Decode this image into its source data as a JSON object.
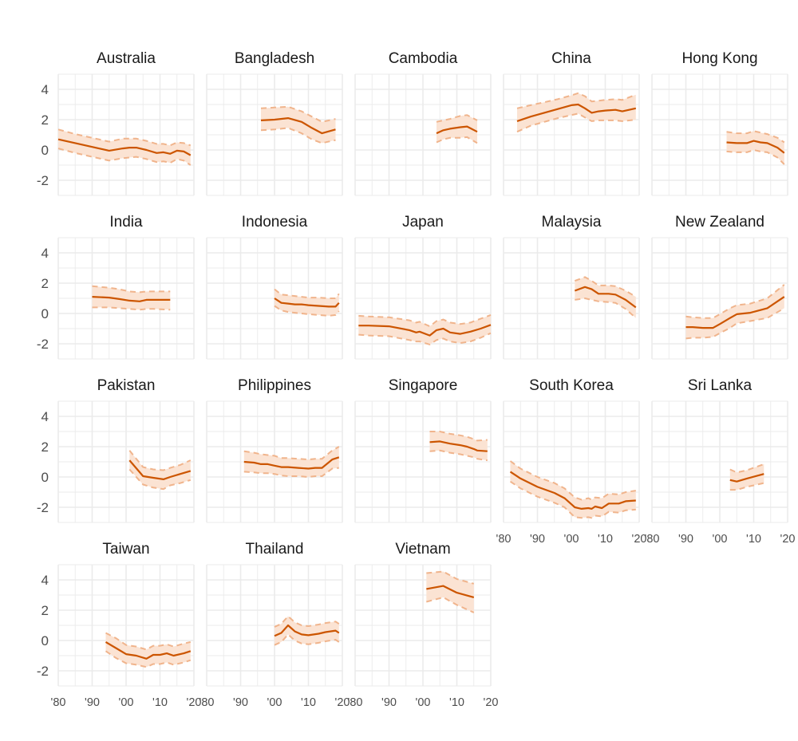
{
  "chart_data": {
    "type": "line",
    "layout": "faceted small multiples, 5 columns",
    "x_ticks": [
      "'80",
      "'90",
      "'00",
      "'10",
      "'20"
    ],
    "x_tick_values": [
      1980,
      1990,
      2000,
      2010,
      2020
    ],
    "xlim": [
      1980,
      2020
    ],
    "y_ticks": [
      "4",
      "2",
      "0",
      "-2"
    ],
    "y_tick_values": [
      4,
      2,
      0,
      -2
    ],
    "ylim": [
      -3,
      5
    ],
    "grid": true,
    "colors": {
      "line": "#cc5500",
      "band": "#fbe3d3",
      "bound": "#f0b48c",
      "grid": "#ebebeb"
    },
    "panels": [
      {
        "name": "Australia",
        "x": [
          1980,
          1985,
          1990,
          1995,
          1999,
          2001,
          2003,
          2006,
          2009,
          2011,
          2013,
          2015,
          2017,
          2019
        ],
        "y": [
          0.7,
          0.45,
          0.2,
          -0.05,
          0.1,
          0.15,
          0.15,
          0.0,
          -0.2,
          -0.15,
          -0.25,
          -0.05,
          -0.1,
          -0.35
        ],
        "lower": [
          0.1,
          -0.2,
          -0.45,
          -0.7,
          -0.55,
          -0.5,
          -0.45,
          -0.6,
          -0.8,
          -0.75,
          -0.85,
          -0.6,
          -0.7,
          -1.0
        ],
        "upper": [
          1.35,
          1.05,
          0.8,
          0.55,
          0.75,
          0.75,
          0.75,
          0.6,
          0.4,
          0.4,
          0.3,
          0.5,
          0.45,
          0.3
        ]
      },
      {
        "name": "Bangladesh",
        "x": [
          1996,
          2000,
          2004,
          2008,
          2011,
          2014,
          2018
        ],
        "y": [
          1.95,
          2.0,
          2.1,
          1.85,
          1.45,
          1.1,
          1.35
        ],
        "lower": [
          1.3,
          1.35,
          1.45,
          1.1,
          0.7,
          0.45,
          0.65
        ],
        "upper": [
          2.75,
          2.8,
          2.85,
          2.55,
          2.2,
          1.85,
          2.05
        ]
      },
      {
        "name": "Cambodia",
        "x": [
          2004,
          2006,
          2008,
          2011,
          2013,
          2016
        ],
        "y": [
          1.1,
          1.3,
          1.4,
          1.5,
          1.55,
          1.2
        ],
        "lower": [
          0.5,
          0.7,
          0.8,
          0.8,
          0.85,
          0.45
        ],
        "upper": [
          1.85,
          1.95,
          2.05,
          2.25,
          2.3,
          1.95
        ]
      },
      {
        "name": "China",
        "x": [
          1984,
          1988,
          1992,
          1996,
          2000,
          2002,
          2004,
          2006,
          2008,
          2010,
          2013,
          2015,
          2019
        ],
        "y": [
          1.9,
          2.2,
          2.45,
          2.7,
          2.95,
          3.0,
          2.75,
          2.45,
          2.55,
          2.6,
          2.65,
          2.55,
          2.75
        ],
        "lower": [
          1.2,
          1.6,
          1.85,
          2.1,
          2.3,
          2.4,
          2.15,
          1.9,
          1.95,
          1.95,
          1.95,
          1.9,
          2.0
        ],
        "upper": [
          2.75,
          2.95,
          3.15,
          3.35,
          3.6,
          3.75,
          3.55,
          3.2,
          3.25,
          3.3,
          3.35,
          3.3,
          3.65
        ]
      },
      {
        "name": "Hong Kong",
        "x": [
          2002,
          2005,
          2008,
          2010,
          2012,
          2014,
          2017,
          2019
        ],
        "y": [
          0.5,
          0.45,
          0.45,
          0.6,
          0.5,
          0.45,
          0.15,
          -0.2
        ],
        "lower": [
          -0.1,
          -0.15,
          -0.15,
          0.0,
          -0.1,
          -0.15,
          -0.5,
          -0.95
        ],
        "upper": [
          1.2,
          1.1,
          1.1,
          1.25,
          1.15,
          1.05,
          0.8,
          0.5
        ]
      },
      {
        "name": "India",
        "x": [
          1990,
          1995,
          1998,
          2001,
          2004,
          2006,
          2008,
          2013
        ],
        "y": [
          1.1,
          1.05,
          0.95,
          0.85,
          0.8,
          0.9,
          0.9,
          0.9
        ],
        "lower": [
          0.4,
          0.4,
          0.35,
          0.3,
          0.25,
          0.3,
          0.3,
          0.25
        ],
        "upper": [
          1.8,
          1.7,
          1.6,
          1.45,
          1.4,
          1.45,
          1.45,
          1.45
        ]
      },
      {
        "name": "Indonesia",
        "x": [
          2000,
          2002,
          2004,
          2006,
          2008,
          2010,
          2013,
          2016,
          2018,
          2019
        ],
        "y": [
          1.0,
          0.7,
          0.65,
          0.6,
          0.6,
          0.55,
          0.5,
          0.45,
          0.45,
          0.7
        ],
        "lower": [
          0.5,
          0.2,
          0.1,
          0.05,
          0.0,
          -0.05,
          -0.1,
          -0.15,
          -0.1,
          0.15
        ],
        "upper": [
          1.6,
          1.25,
          1.2,
          1.15,
          1.1,
          1.05,
          1.05,
          1.0,
          1.0,
          1.3
        ]
      },
      {
        "name": "Japan",
        "x": [
          1981,
          1984,
          1990,
          1996,
          1998,
          1999,
          2002,
          2004,
          2006,
          2008,
          2011,
          2014,
          2017,
          2020
        ],
        "y": [
          -0.8,
          -0.8,
          -0.85,
          -1.1,
          -1.25,
          -1.2,
          -1.45,
          -1.1,
          -1.0,
          -1.25,
          -1.35,
          -1.2,
          -1.0,
          -0.75
        ],
        "lower": [
          -1.4,
          -1.45,
          -1.5,
          -1.75,
          -1.85,
          -1.85,
          -2.05,
          -1.75,
          -1.65,
          -1.85,
          -1.95,
          -1.85,
          -1.6,
          -1.3
        ],
        "upper": [
          -0.15,
          -0.2,
          -0.25,
          -0.45,
          -0.6,
          -0.55,
          -0.85,
          -0.5,
          -0.4,
          -0.6,
          -0.7,
          -0.6,
          -0.35,
          -0.1
        ]
      },
      {
        "name": "Malaysia",
        "x": [
          2001,
          2004,
          2006,
          2008,
          2011,
          2013,
          2016,
          2019
        ],
        "y": [
          1.5,
          1.75,
          1.6,
          1.3,
          1.3,
          1.25,
          0.9,
          0.4
        ],
        "lower": [
          0.9,
          1.0,
          0.9,
          0.8,
          0.75,
          0.7,
          0.3,
          -0.3
        ],
        "upper": [
          2.15,
          2.4,
          2.15,
          1.85,
          1.85,
          1.8,
          1.5,
          1.1
        ]
      },
      {
        "name": "New Zealand",
        "x": [
          1990,
          1992,
          1995,
          1998,
          2000,
          2003,
          2005,
          2009,
          2014,
          2019
        ],
        "y": [
          -0.9,
          -0.9,
          -0.95,
          -0.95,
          -0.7,
          -0.3,
          -0.05,
          0.05,
          0.35,
          1.1
        ],
        "lower": [
          -1.65,
          -1.6,
          -1.6,
          -1.55,
          -1.3,
          -0.95,
          -0.65,
          -0.5,
          -0.3,
          0.35
        ],
        "upper": [
          -0.2,
          -0.25,
          -0.3,
          -0.3,
          -0.05,
          0.35,
          0.55,
          0.65,
          1.0,
          1.9
        ]
      },
      {
        "name": "Pakistan",
        "x": [
          2001,
          2005,
          2008,
          2011,
          2013,
          2016,
          2019
        ],
        "y": [
          1.1,
          0.05,
          -0.05,
          -0.15,
          0.0,
          0.2,
          0.4
        ],
        "lower": [
          0.5,
          -0.5,
          -0.7,
          -0.8,
          -0.55,
          -0.4,
          -0.2
        ],
        "upper": [
          1.75,
          0.65,
          0.5,
          0.45,
          0.6,
          0.8,
          1.1
        ]
      },
      {
        "name": "Philippines",
        "x": [
          1991,
          1994,
          1996,
          1998,
          2000,
          2002,
          2004,
          2007,
          2010,
          2012,
          2014,
          2017,
          2019
        ],
        "y": [
          1.0,
          0.95,
          0.85,
          0.85,
          0.75,
          0.65,
          0.65,
          0.6,
          0.55,
          0.6,
          0.6,
          1.15,
          1.3
        ],
        "lower": [
          0.35,
          0.3,
          0.25,
          0.25,
          0.2,
          0.1,
          0.05,
          0.05,
          0.0,
          0.05,
          0.05,
          0.55,
          0.6
        ],
        "upper": [
          1.7,
          1.6,
          1.5,
          1.45,
          1.4,
          1.25,
          1.25,
          1.2,
          1.15,
          1.2,
          1.2,
          1.75,
          2.0
        ]
      },
      {
        "name": "Singapore",
        "x": [
          2002,
          2005,
          2008,
          2011,
          2013,
          2015,
          2016,
          2019
        ],
        "y": [
          2.3,
          2.35,
          2.2,
          2.1,
          2.0,
          1.85,
          1.75,
          1.7
        ],
        "lower": [
          1.7,
          1.75,
          1.6,
          1.5,
          1.4,
          1.3,
          1.2,
          1.1
        ],
        "upper": [
          3.0,
          3.0,
          2.85,
          2.75,
          2.65,
          2.5,
          2.4,
          2.45
        ]
      },
      {
        "name": "South Korea",
        "x": [
          1982,
          1985,
          1990,
          1995,
          1998,
          2001,
          2003,
          2005,
          2006,
          2007,
          2009,
          2011,
          2014,
          2016,
          2019
        ],
        "y": [
          0.35,
          -0.1,
          -0.65,
          -1.05,
          -1.4,
          -2.0,
          -2.1,
          -2.05,
          -2.1,
          -1.95,
          -2.05,
          -1.75,
          -1.75,
          -1.6,
          -1.55
        ],
        "lower": [
          -0.3,
          -0.75,
          -1.3,
          -1.7,
          -2.0,
          -2.65,
          -2.7,
          -2.65,
          -2.7,
          -2.55,
          -2.6,
          -2.3,
          -2.35,
          -2.2,
          -2.15
        ],
        "upper": [
          1.05,
          0.55,
          0.0,
          -0.4,
          -0.75,
          -1.35,
          -1.5,
          -1.4,
          -1.5,
          -1.35,
          -1.4,
          -1.1,
          -1.15,
          -1.0,
          -0.9
        ]
      },
      {
        "name": "Sri Lanka",
        "x": [
          2003,
          2005,
          2008,
          2013
        ],
        "y": [
          -0.2,
          -0.3,
          -0.1,
          0.2
        ],
        "lower": [
          -0.85,
          -0.85,
          -0.65,
          -0.4
        ],
        "upper": [
          0.5,
          0.3,
          0.45,
          0.85
        ]
      },
      {
        "name": "Taiwan",
        "x": [
          1994,
          1997,
          2000,
          2003,
          2006,
          2008,
          2010,
          2012,
          2014,
          2017,
          2019
        ],
        "y": [
          -0.1,
          -0.5,
          -0.9,
          -1.0,
          -1.2,
          -0.95,
          -0.95,
          -0.85,
          -1.0,
          -0.85,
          -0.7
        ],
        "lower": [
          -0.7,
          -1.15,
          -1.5,
          -1.6,
          -1.75,
          -1.55,
          -1.55,
          -1.45,
          -1.6,
          -1.45,
          -1.3
        ],
        "upper": [
          0.5,
          0.15,
          -0.3,
          -0.4,
          -0.6,
          -0.35,
          -0.35,
          -0.25,
          -0.4,
          -0.2,
          -0.1
        ]
      },
      {
        "name": "Thailand",
        "x": [
          2000,
          2002,
          2004,
          2006,
          2008,
          2010,
          2013,
          2015,
          2018,
          2019
        ],
        "y": [
          0.3,
          0.5,
          1.0,
          0.6,
          0.4,
          0.35,
          0.45,
          0.55,
          0.65,
          0.5
        ],
        "lower": [
          -0.3,
          -0.1,
          0.4,
          0.0,
          -0.2,
          -0.25,
          -0.15,
          -0.05,
          0.05,
          -0.1
        ],
        "upper": [
          0.9,
          1.1,
          1.6,
          1.2,
          1.0,
          0.95,
          1.05,
          1.15,
          1.25,
          1.1
        ]
      },
      {
        "name": "Vietnam",
        "x": [
          2001,
          2006,
          2010,
          2015
        ],
        "y": [
          3.4,
          3.6,
          3.15,
          2.85
        ],
        "lower": [
          2.55,
          2.85,
          2.35,
          1.85
        ],
        "upper": [
          4.45,
          4.55,
          4.05,
          3.75
        ]
      }
    ]
  }
}
